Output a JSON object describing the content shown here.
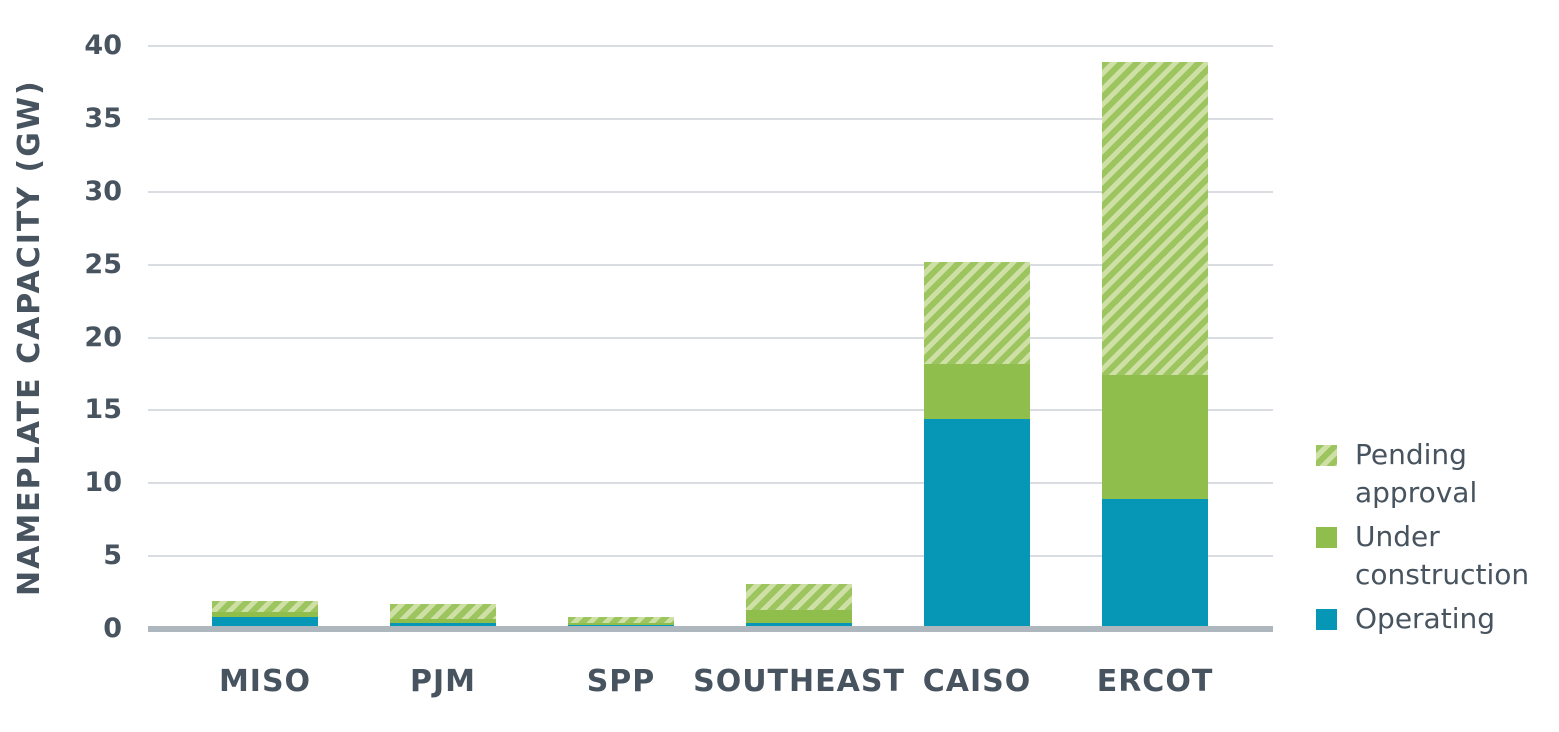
{
  "chart_data": {
    "type": "bar",
    "stacked": true,
    "title": "",
    "xlabel": "",
    "ylabel": "NAMEPLATE CAPACITY (GW)",
    "ylim": [
      0,
      40
    ],
    "ytick_step": 5,
    "grid": true,
    "legend_position": "right",
    "categories": [
      "MISO",
      "PJM",
      "SPP",
      "SOUTHEAST",
      "CAISO",
      "ERCOT"
    ],
    "series": [
      {
        "name": "Operating",
        "pattern": "solid-teal",
        "values": [
          0.8,
          0.4,
          0.3,
          0.4,
          14.4,
          8.9
        ]
      },
      {
        "name": "Under construction",
        "pattern": "solid-green",
        "values": [
          0.4,
          0.3,
          0.1,
          0.9,
          3.8,
          8.5
        ]
      },
      {
        "name": "Pending approval",
        "pattern": "hatch-green",
        "values": [
          0.7,
          1.0,
          0.4,
          1.8,
          7.0,
          21.5
        ]
      }
    ],
    "totals": [
      1.9,
      1.7,
      0.8,
      3.1,
      25.2,
      38.9
    ]
  },
  "legend": {
    "items": [
      {
        "label": "Pending approval",
        "pattern": "hatch-green"
      },
      {
        "label": "Under construction",
        "pattern": "solid-green"
      },
      {
        "label": "Operating",
        "pattern": "solid-teal"
      }
    ]
  },
  "colors": {
    "operating_teal": "#0797B6",
    "under_construction_green": "#8FBE4D",
    "pending_hatch_background": "#CFE0A7",
    "pending_hatch_stripe": "#9DC55F",
    "gridline": "#D9DCE1",
    "axis_line": "#AEB6BE",
    "text": "#47545F"
  }
}
